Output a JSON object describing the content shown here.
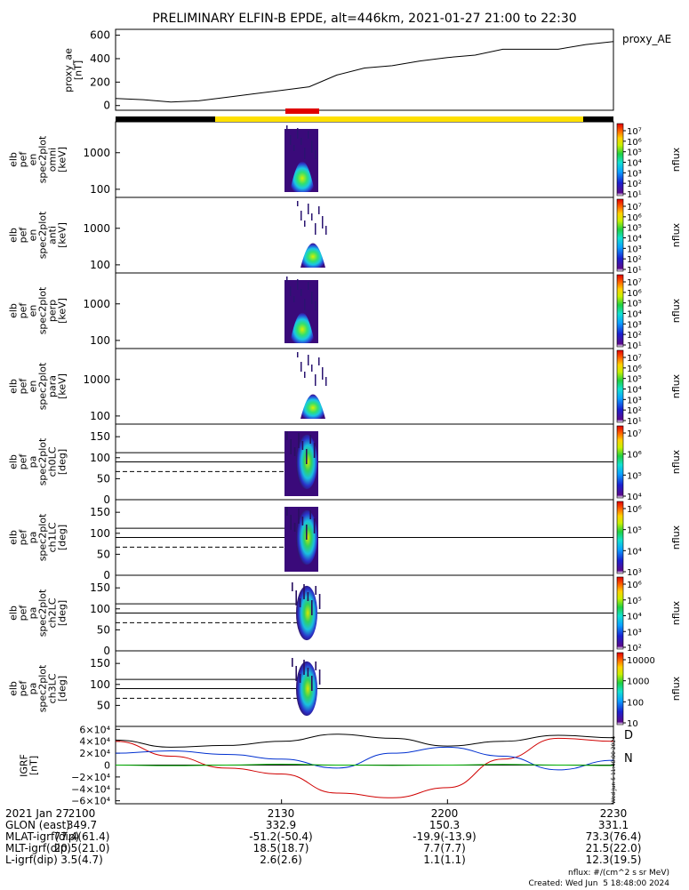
{
  "title": "PRELIMINARY ELFIN-B EPDE, alt=446km, 2021-01-27 21:00 to 22:30",
  "time_ticks": [
    "2100",
    "2130",
    "2200",
    "2230"
  ],
  "colors": {
    "spectrogram_low": "#3a0a7a",
    "spectrogram_mid": "#19c7e6",
    "spectrogram_high": "#d8f000",
    "bar_black": "#000000",
    "bar_yellow": "#ffe000",
    "bar_red": "#e00000",
    "bx": "#d00000",
    "by": "#0030d0",
    "bz": "#00b000",
    "bt": "#000000"
  },
  "panels": {
    "proxy_ae": {
      "ylabel": [
        "proxy_ae",
        "[nT]"
      ],
      "yticks": [
        "600",
        "400",
        "200",
        "0"
      ],
      "legend": "proxy_AE"
    },
    "energy": [
      {
        "ylabel": [
          "elb",
          "pef",
          "en",
          "spec2plot",
          "omni",
          "[keV]"
        ],
        "yticks": [
          "1000",
          "100"
        ],
        "zlabel": "nflux"
      },
      {
        "ylabel": [
          "elb",
          "pef",
          "en",
          "spec2plot",
          "anti",
          "[keV]"
        ],
        "yticks": [
          "1000",
          "100"
        ],
        "zlabel": "nflux"
      },
      {
        "ylabel": [
          "elb",
          "pef",
          "en",
          "spec2plot",
          "perp",
          "[keV]"
        ],
        "yticks": [
          "1000",
          "100"
        ],
        "zlabel": "nflux"
      },
      {
        "ylabel": [
          "elb",
          "pef",
          "en",
          "spec2plot",
          "para",
          "[keV]"
        ],
        "yticks": [
          "1000",
          "100"
        ],
        "zlabel": "nflux"
      }
    ],
    "pitch": [
      {
        "ylabel": [
          "elb",
          "pef",
          "pa",
          "spec2plot",
          "ch0LC",
          "[deg]"
        ],
        "yticks": [
          "150",
          "100",
          "50",
          "0"
        ],
        "zlabel": "nflux"
      },
      {
        "ylabel": [
          "elb",
          "pef",
          "pa",
          "spec2plot",
          "ch1LC",
          "[deg]"
        ],
        "yticks": [
          "150",
          "100",
          "50",
          "0"
        ],
        "zlabel": "nflux"
      },
      {
        "ylabel": [
          "elb",
          "pef",
          "pa",
          "spec2plot",
          "ch2LC",
          "[deg]"
        ],
        "yticks": [
          "150",
          "100",
          "50",
          "0"
        ],
        "zlabel": "nflux"
      },
      {
        "ylabel": [
          "elb",
          "pef",
          "pa",
          "spec2plot",
          "ch3LC",
          "[deg]"
        ],
        "yticks": [
          "150",
          "100",
          "50"
        ],
        "zlabel": "nflux"
      }
    ],
    "igrf": {
      "ylabel": [
        "IGRF",
        "[nT]"
      ],
      "yticks": [
        "6×10⁴",
        "4×10⁴",
        "2×10⁴",
        "0",
        "−2×10⁴",
        "−4×10⁴",
        "−6×10⁴"
      ],
      "legend": [
        "D",
        "N"
      ]
    }
  },
  "colorbars": [
    {
      "ticks": [
        "10⁷",
        "10⁶",
        "10⁵",
        "10⁴",
        "10³",
        "10²",
        "10¹"
      ]
    },
    {
      "ticks": [
        "10⁷",
        "10⁶",
        "10⁵",
        "10⁴",
        "10³",
        "10²",
        "10¹"
      ]
    },
    {
      "ticks": [
        "10⁷",
        "10⁶",
        "10⁵",
        "10⁴",
        "10³",
        "10²",
        "10¹"
      ]
    },
    {
      "ticks": [
        "10⁷",
        "10⁶",
        "10⁵",
        "10⁴",
        "10³",
        "10²",
        "10¹"
      ]
    },
    {
      "ticks": [
        "10⁷",
        "10⁶",
        "10⁵",
        "10⁴"
      ]
    },
    {
      "ticks": [
        "10⁶",
        "10⁵",
        "10⁴",
        "10³"
      ]
    },
    {
      "ticks": [
        "10⁶",
        "10⁵",
        "10⁴",
        "10³",
        "10²"
      ]
    },
    {
      "ticks": [
        "10000",
        "1000",
        "100",
        "10"
      ]
    }
  ],
  "side_stamp": "Wed Jun  5 11:48:00 2024",
  "footer": {
    "rows": [
      {
        "label": "2021 Jan 27",
        "values": [
          "2100",
          "2130",
          "2200",
          "2230"
        ]
      },
      {
        "label": "GLON (east)",
        "values": [
          "349.7",
          "332.9",
          "150.3",
          "331.1"
        ]
      },
      {
        "label": "MLAT-igrf(dip)",
        "values": [
          "77.4(61.4)",
          "-51.2(-50.4)",
          "-19.9(-13.9)",
          "73.3(76.4)"
        ]
      },
      {
        "label": "MLT-igrf(dip)",
        "values": [
          "20.5(21.0)",
          "18.5(18.7)",
          "7.7(7.7)",
          "21.5(22.0)"
        ]
      },
      {
        "label": "L-igrf(dip)",
        "values": [
          "3.5(4.7)",
          "2.6(2.6)",
          "1.1(1.1)",
          "12.3(19.5)"
        ]
      }
    ],
    "units": "nflux: #/(cm^2 s sr MeV)",
    "created": "Created: Wed Jun  5 18:48:00 2024"
  },
  "chart_data": [
    {
      "type": "line",
      "title": "PRELIMINARY ELFIN-B EPDE, alt=446km, 2021-01-27 21:00 to 22:30",
      "ylabel": "proxy_ae [nT]",
      "ylim": [
        -40,
        650
      ],
      "x": [
        "21:00",
        "21:05",
        "21:10",
        "21:15",
        "21:20",
        "21:25",
        "21:30",
        "21:35",
        "21:40",
        "21:45",
        "21:50",
        "21:55",
        "22:00",
        "22:05",
        "22:10",
        "22:15",
        "22:20",
        "22:25",
        "22:30"
      ],
      "series": [
        {
          "name": "proxy_AE",
          "values": [
            60,
            50,
            30,
            40,
            70,
            100,
            130,
            160,
            260,
            320,
            340,
            380,
            410,
            430,
            480,
            480,
            480,
            520,
            545
          ]
        }
      ]
    },
    {
      "type": "heatmap",
      "ylabel": "energy [keV]",
      "yscale": "log",
      "ylim": [
        60,
        7000
      ],
      "zlabel": "nflux",
      "x_range": [
        "21:33",
        "21:35"
      ],
      "panels": [
        "omni",
        "anti",
        "perp",
        "para"
      ]
    },
    {
      "type": "heatmap",
      "ylabel": "pitch angle [deg]",
      "ylim": [
        0,
        180
      ],
      "zlabel": "nflux",
      "x_range": [
        "21:33",
        "21:35"
      ],
      "panels": [
        "ch0LC",
        "ch1LC",
        "ch2LC",
        "ch3LC"
      ]
    },
    {
      "type": "line",
      "ylabel": "IGRF [nT]",
      "ylim": [
        -65000,
        65000
      ],
      "x": [
        "21:00",
        "21:10",
        "21:20",
        "21:30",
        "21:40",
        "21:50",
        "22:00",
        "22:10",
        "22:20",
        "22:30"
      ],
      "series": [
        {
          "name": "D",
          "values": [
            40000,
            15000,
            -5000,
            -15000,
            -47000,
            -55000,
            -38000,
            10000,
            45000,
            40000
          ]
        },
        {
          "name": "N",
          "values": [
            20000,
            24000,
            18000,
            10000,
            -5000,
            20000,
            30000,
            15000,
            -8000,
            8000
          ]
        },
        {
          "values": [
            0,
            -1000,
            0,
            1500,
            0,
            -500,
            0,
            1200,
            0,
            -800
          ]
        },
        {
          "values": [
            42000,
            30000,
            33000,
            40000,
            52000,
            45000,
            32000,
            40000,
            50000,
            46000
          ]
        }
      ]
    }
  ]
}
